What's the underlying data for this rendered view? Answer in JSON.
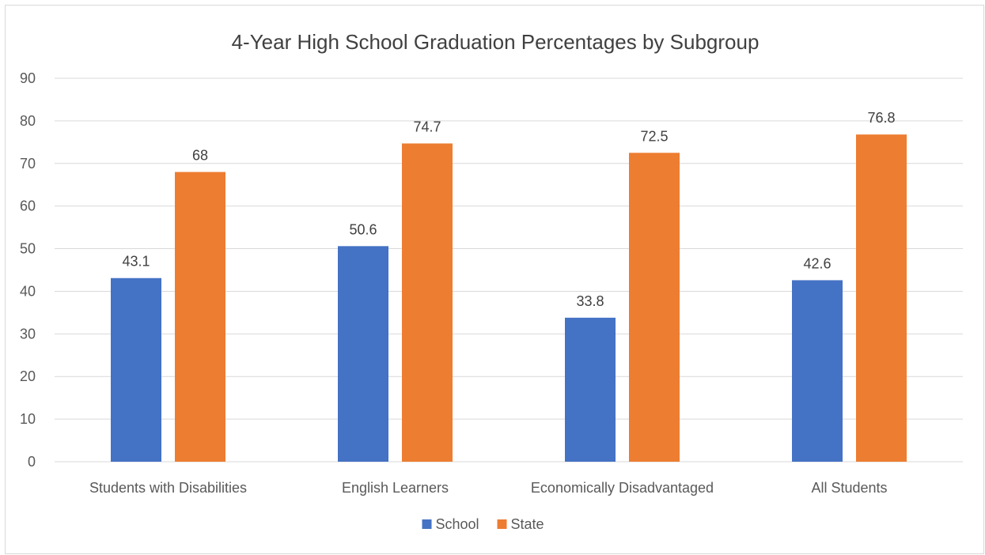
{
  "chart_data": {
    "type": "bar",
    "title": "4-Year High School Graduation Percentages by Subgroup",
    "xlabel": "",
    "ylabel": "",
    "categories": [
      "Students with Disabilities",
      "English Learners",
      "Economically Disadvantaged",
      "All Students"
    ],
    "series": [
      {
        "name": "School",
        "color": "#4472c4",
        "values": [
          43.1,
          50.6,
          33.8,
          42.6
        ]
      },
      {
        "name": "State",
        "color": "#ed7d31",
        "values": [
          68,
          74.7,
          72.5,
          76.8
        ]
      }
    ],
    "ylim": [
      0,
      90
    ],
    "yticks": [
      0,
      10,
      20,
      30,
      40,
      50,
      60,
      70,
      80,
      90
    ],
    "grid": true,
    "gridline_color": "#d9d9d9",
    "data_labels": true,
    "legend_position": "bottom"
  }
}
